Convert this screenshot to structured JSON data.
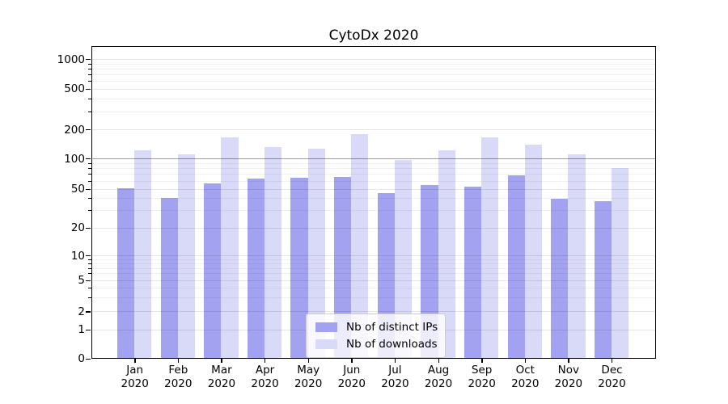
{
  "chart_data": {
    "type": "bar",
    "title": "CytoDx 2020",
    "categories": [
      "Jan 2020",
      "Feb 2020",
      "Mar 2020",
      "Apr 2020",
      "May 2020",
      "Jun 2020",
      "Jul 2020",
      "Aug 2020",
      "Sep 2020",
      "Oct 2020",
      "Nov 2020",
      "Dec 2020"
    ],
    "series": [
      {
        "name": "Nb of distinct IPs",
        "color": "#a2a2f0",
        "values": [
          50,
          40,
          56,
          62,
          64,
          65,
          45,
          54,
          52,
          67,
          39,
          37
        ]
      },
      {
        "name": "Nb of downloads",
        "color": "#d9d9f8",
        "values": [
          120,
          110,
          163,
          130,
          125,
          178,
          96,
          121,
          164,
          137,
          110,
          80
        ]
      }
    ],
    "xlabel": "",
    "ylabel": "",
    "yscale": "symlog",
    "ylim": [
      0,
      1400
    ],
    "y_ticks": [
      0,
      1,
      2,
      5,
      10,
      20,
      50,
      100,
      200,
      500,
      1000
    ],
    "y_minor_ticks": [
      3,
      4,
      6,
      7,
      8,
      9,
      30,
      40,
      60,
      70,
      80,
      90,
      300,
      400,
      600,
      700,
      800,
      900
    ],
    "grid": true,
    "reference_line": 100,
    "legend_position": "lower center",
    "bar_group": "paired, IPs left / downloads right of each month tick"
  }
}
